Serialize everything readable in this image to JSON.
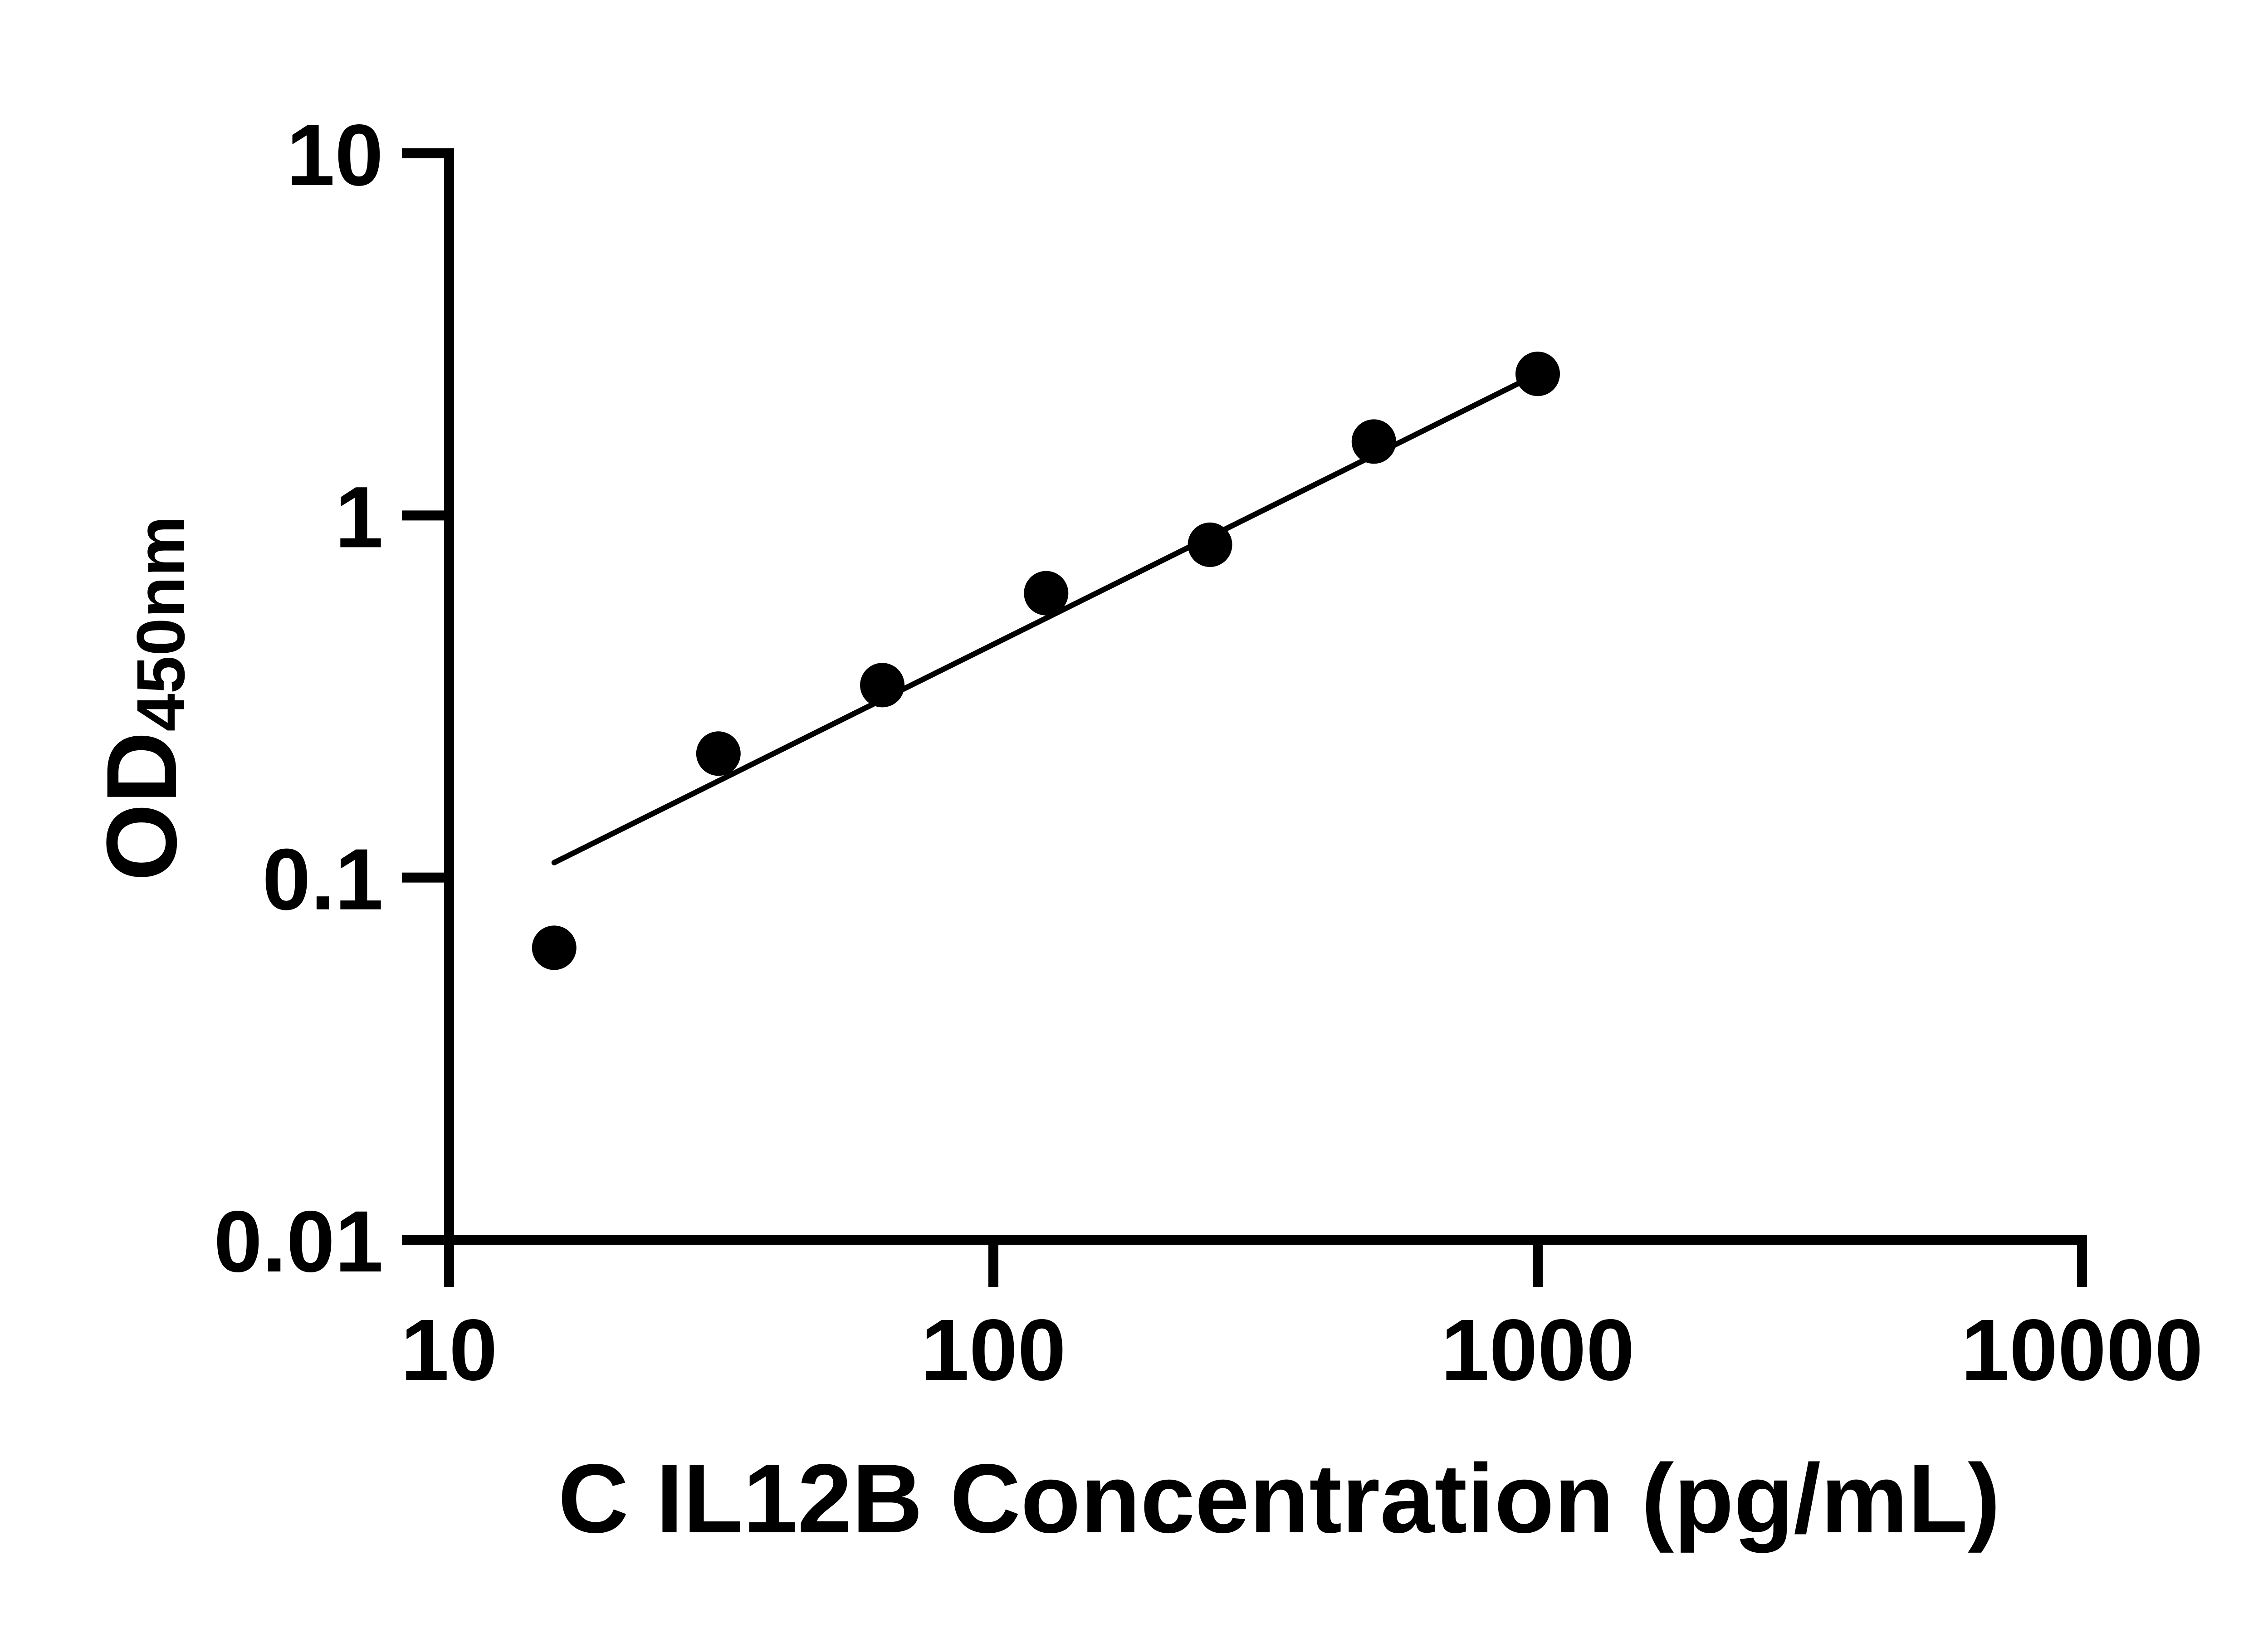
{
  "figure": {
    "background_color": "#ffffff",
    "ink_color": "#000000"
  },
  "chart_data": {
    "type": "scatter",
    "title": "",
    "xlabel": "C IL12B Concentration (pg/mL)",
    "ylabel_main": "OD",
    "ylabel_sub": "450nm",
    "x_scale": "log",
    "y_scale": "log",
    "xlim": [
      10,
      10000
    ],
    "ylim": [
      0.01,
      10
    ],
    "grid": "off",
    "legend": "none",
    "x_ticks": [
      {
        "value": 10,
        "label": "10"
      },
      {
        "value": 100,
        "label": "100"
      },
      {
        "value": 1000,
        "label": "1000"
      },
      {
        "value": 10000,
        "label": "10000"
      }
    ],
    "y_ticks": [
      {
        "value": 10,
        "label": "10"
      },
      {
        "value": 1,
        "label": "1"
      },
      {
        "value": 0.1,
        "label": "0.1"
      },
      {
        "value": 0.01,
        "label": "0.01"
      }
    ],
    "series": [
      {
        "name": "standard-curve-points",
        "marker": "filled-circle",
        "color": "#000000",
        "points": [
          {
            "x": 15.6,
            "y": 0.064
          },
          {
            "x": 31.25,
            "y": 0.22
          },
          {
            "x": 62.5,
            "y": 0.34
          },
          {
            "x": 125,
            "y": 0.61
          },
          {
            "x": 250,
            "y": 0.83
          },
          {
            "x": 500,
            "y": 1.6
          },
          {
            "x": 1000,
            "y": 2.46
          }
        ]
      }
    ],
    "fit_line": {
      "name": "trend-line",
      "color": "#000000",
      "x1": 15.6,
      "y1": 0.11,
      "x2": 1000,
      "y2": 2.46
    }
  }
}
